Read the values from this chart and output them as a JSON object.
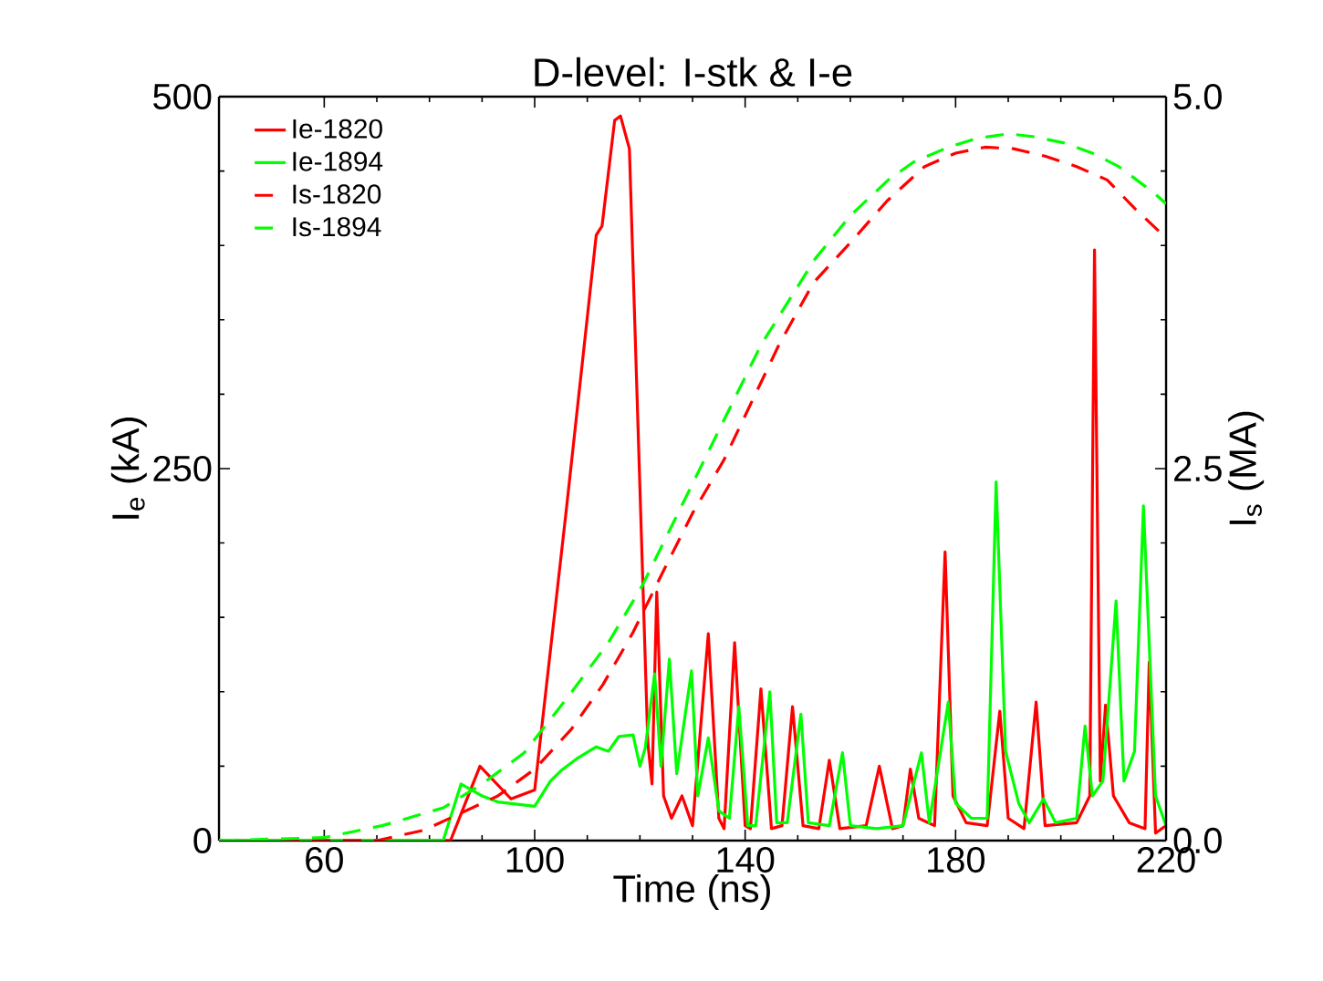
{
  "chart_data": {
    "type": "line",
    "title": "D-level: I-stk & I-e",
    "xlabel": "Time (ns)",
    "ylabel": "I$_{e}$ (kA)",
    "y2label": "I$_{s}$ (MA)",
    "xlim": [
      40,
      220
    ],
    "xticks": [
      60,
      100,
      140,
      180,
      220
    ],
    "ylim": [
      0,
      500
    ],
    "yticks": [
      0,
      250,
      500
    ],
    "y2lim": [
      0,
      5
    ],
    "y2ticks": [
      {
        "value": 0,
        "label": "0.0"
      },
      {
        "value": 2.5,
        "label": "2.5"
      },
      {
        "value": 5,
        "label": "5.0"
      }
    ],
    "legend": "top left",
    "series": [
      {
        "name": "Ie-1820",
        "color": "#ff0000",
        "line_style": "solid",
        "x": [
          40,
          84,
          89.6,
          95.5,
          100,
          106,
          111.7,
          112.8,
          115.2,
          116.3,
          118,
          121.5,
          122.3,
          123.2,
          124.5,
          126,
          128,
          130,
          133,
          135,
          136,
          138,
          140,
          141,
          143,
          145,
          147,
          149,
          151,
          154,
          156,
          158,
          163,
          165.5,
          168,
          170,
          171.4,
          173,
          176,
          178,
          179.5,
          182,
          186,
          188.4,
          190,
          193,
          195.3,
          197,
          203,
          205.5,
          206.4,
          207.5,
          208.5,
          210,
          213,
          216,
          216.8,
          218,
          220
        ],
        "values": [
          0,
          0,
          50,
          28,
          34,
          222,
          407,
          413,
          484,
          487,
          465,
          66,
          38,
          167,
          30,
          15,
          30,
          10,
          139,
          15,
          8,
          133,
          10,
          8,
          102,
          8,
          10,
          90,
          10,
          8,
          54,
          8,
          10,
          50,
          8,
          10,
          48,
          15,
          10,
          194,
          30,
          12,
          10,
          87,
          15,
          8,
          93,
          10,
          12,
          30,
          397,
          40,
          91,
          30,
          12,
          8,
          120,
          5,
          10
        ]
      },
      {
        "name": "Ie-1894",
        "color": "#00ff00",
        "line_style": "solid",
        "x": [
          40,
          82.6,
          86,
          90,
          93,
          100,
          103,
          105,
          108,
          111.7,
          114,
          116,
          118.7,
          120,
          121,
          122.8,
          124,
          125.6,
          127,
          129.8,
          131,
          133,
          135,
          137,
          138.8,
          140.5,
          142,
          144.7,
          146,
          148,
          150.6,
          152,
          156,
          158.5,
          160,
          165,
          170,
          173.5,
          175,
          178.6,
          180,
          183,
          186,
          187.7,
          189.5,
          192,
          194,
          196.7,
          199,
          203,
          204.6,
          206,
          208,
          210.5,
          212,
          214,
          215.7,
          218,
          220
        ],
        "values": [
          0,
          0,
          38,
          30,
          26,
          23,
          40,
          47,
          55,
          63,
          60,
          70,
          71,
          50,
          62,
          112,
          50,
          122,
          45,
          114,
          30,
          69,
          20,
          15,
          90,
          10,
          10,
          100,
          12,
          12,
          85,
          12,
          10,
          59,
          10,
          8,
          10,
          59,
          12,
          93,
          25,
          15,
          15,
          241,
          60,
          25,
          12,
          28,
          12,
          15,
          77,
          30,
          40,
          161,
          40,
          60,
          225,
          30,
          10
        ]
      },
      {
        "name": "Is-1820",
        "color": "#ff0000",
        "line_style": "dashed",
        "axis": "y2",
        "x": [
          40,
          70,
          79,
          93,
          100,
          107,
          113,
          118.7,
          125,
          130,
          136,
          146.4,
          153,
          160.3,
          167,
          174.1,
          180,
          185.6,
          191,
          197,
          203,
          208.8,
          214,
          220
        ],
        "values": [
          0,
          0,
          0.07,
          0.3,
          0.48,
          0.75,
          1.05,
          1.4,
          1.85,
          2.2,
          2.56,
          3.33,
          3.75,
          4.03,
          4.3,
          4.53,
          4.62,
          4.66,
          4.65,
          4.6,
          4.53,
          4.44,
          4.25,
          4.05
        ]
      },
      {
        "name": "Is-1894",
        "color": "#00ff00",
        "line_style": "dashed",
        "axis": "y2",
        "x": [
          40,
          60,
          71,
          82.6,
          90,
          98,
          106,
          114,
          120.4,
          131,
          137,
          143,
          153.3,
          160,
          167.2,
          172,
          178.6,
          184,
          190,
          195,
          200.5,
          206,
          211,
          217.8,
          220
        ],
        "values": [
          0,
          0.02,
          0.1,
          0.22,
          0.38,
          0.59,
          0.95,
          1.33,
          1.71,
          2.47,
          2.9,
          3.33,
          3.91,
          4.2,
          4.44,
          4.56,
          4.66,
          4.72,
          4.75,
          4.73,
          4.69,
          4.62,
          4.53,
          4.35,
          4.28
        ]
      }
    ]
  }
}
